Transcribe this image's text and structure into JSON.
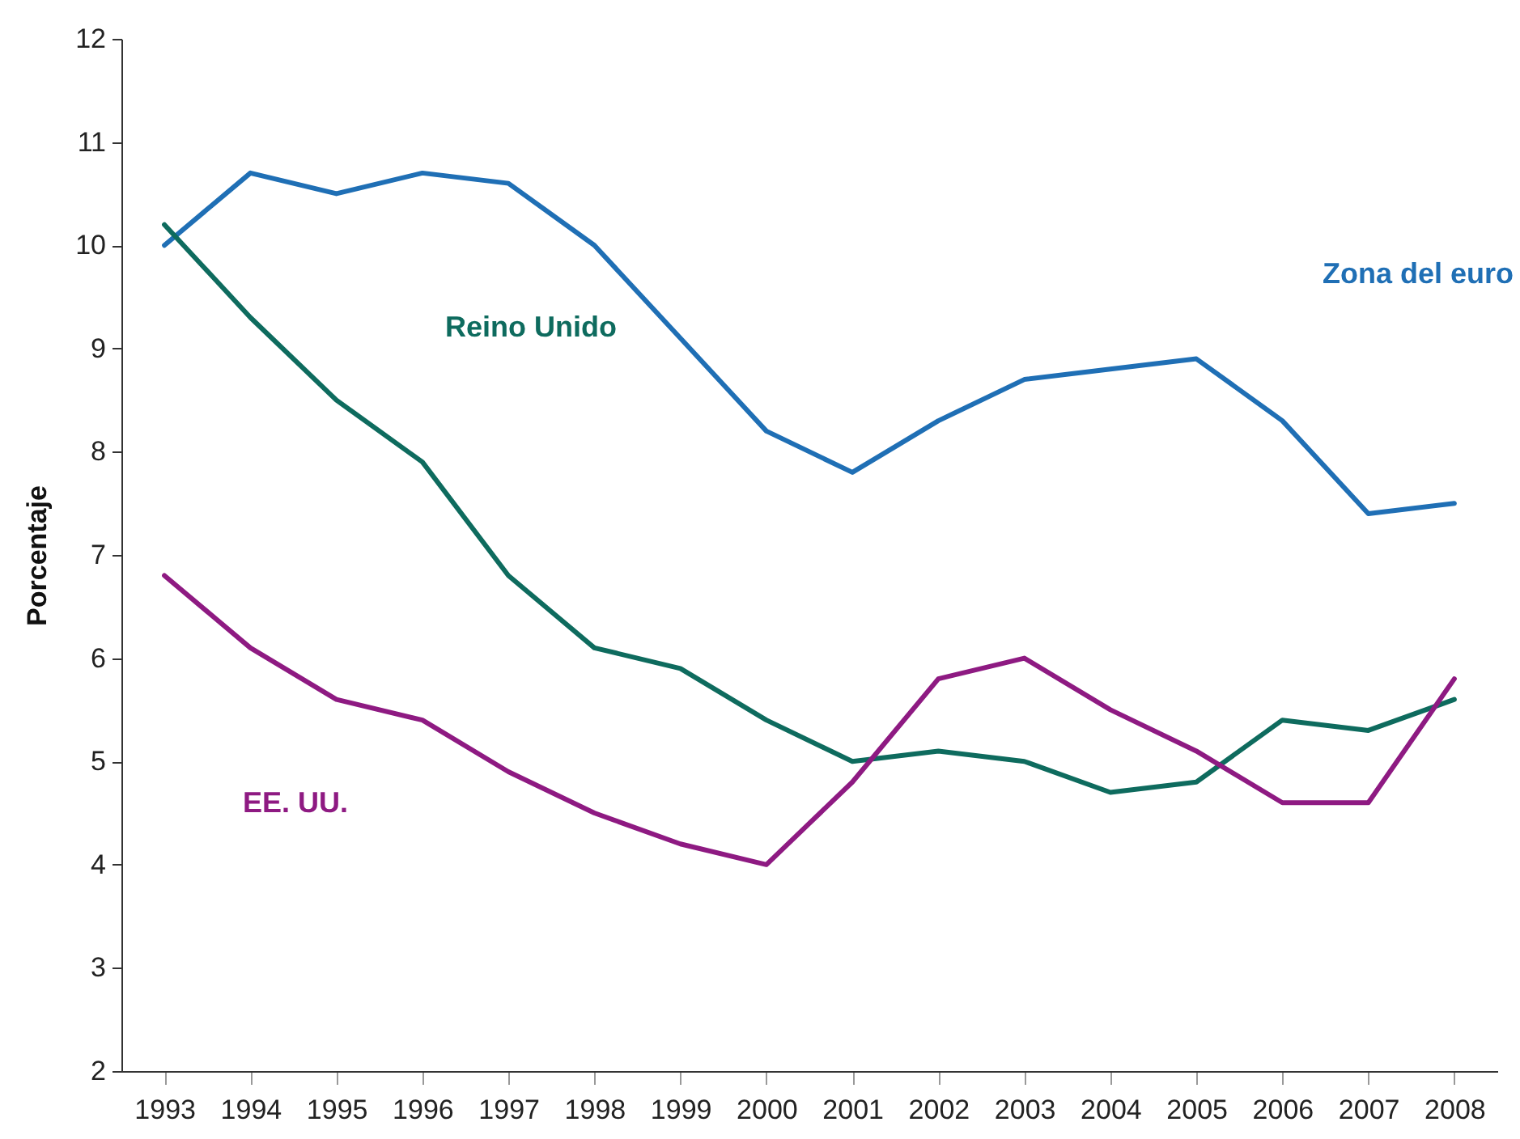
{
  "chart_data": {
    "type": "line",
    "ylabel": "Porcentaje",
    "categories": [
      "1993",
      "1994",
      "1995",
      "1996",
      "1997",
      "1998",
      "1999",
      "2000",
      "2001",
      "2002",
      "2003",
      "2004",
      "2005",
      "2006",
      "2007",
      "2008"
    ],
    "series": [
      {
        "name": "Zona del euro",
        "color": "#1f6fb5",
        "values": [
          10.0,
          10.7,
          10.5,
          10.7,
          10.6,
          10.0,
          9.1,
          8.2,
          7.8,
          8.3,
          8.7,
          8.8,
          8.9,
          8.3,
          7.4,
          7.5
        ]
      },
      {
        "name": "Reino Unido",
        "color": "#0e6b5e",
        "values": [
          10.2,
          9.3,
          8.5,
          7.9,
          6.8,
          6.1,
          5.9,
          5.4,
          5.0,
          5.1,
          5.0,
          4.7,
          4.8,
          5.4,
          5.3,
          5.6
        ]
      },
      {
        "name": "EE. UU.",
        "color": "#8e1a82",
        "values": [
          6.8,
          6.1,
          5.6,
          5.4,
          4.9,
          4.5,
          4.2,
          4.0,
          4.8,
          5.8,
          6.0,
          5.5,
          5.1,
          4.6,
          4.6,
          5.8
        ]
      }
    ],
    "ylim": [
      2,
      12
    ],
    "yticks": [
      2,
      3,
      4,
      5,
      6,
      7,
      8,
      9,
      10,
      11,
      12
    ],
    "grid": false,
    "legend": false,
    "marker": "none",
    "line_style": "solid"
  }
}
